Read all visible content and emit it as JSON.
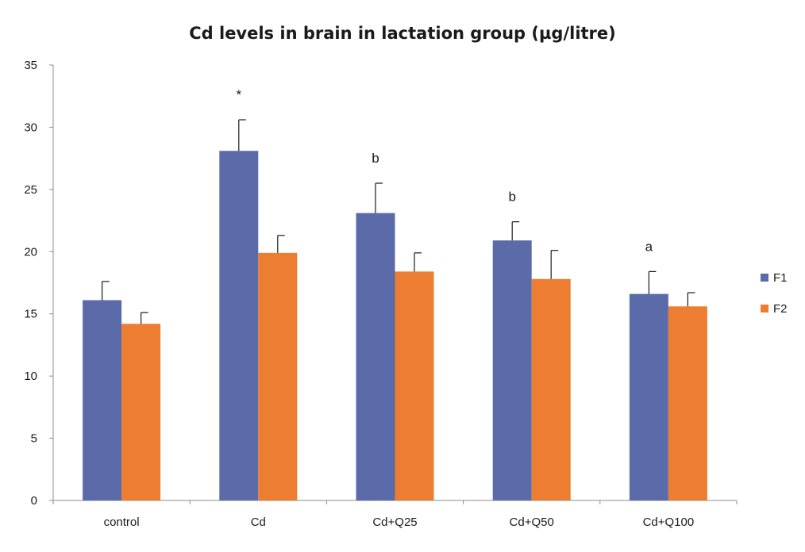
{
  "chart_data": {
    "type": "bar",
    "title": "Cd levels in brain in lactation group (µg/litre)",
    "xlabel": "",
    "ylabel": "",
    "ylim": [
      0,
      35
    ],
    "yticks": [
      0,
      5,
      10,
      15,
      20,
      25,
      30,
      35
    ],
    "categories": [
      "control",
      "Cd",
      "Cd+Q25",
      "Cd+Q50",
      "Cd+Q100"
    ],
    "series": [
      {
        "name": "F1",
        "color": "#5B6BAA",
        "values": [
          16.1,
          28.1,
          23.1,
          20.9,
          16.6
        ],
        "errors": [
          1.5,
          2.5,
          2.4,
          1.5,
          1.8
        ]
      },
      {
        "name": "F2",
        "color": "#ED7D31",
        "values": [
          14.2,
          19.9,
          18.4,
          17.8,
          15.6
        ],
        "errors": [
          0.9,
          1.4,
          1.5,
          2.3,
          1.1
        ]
      }
    ],
    "significance": [
      "",
      "*",
      "b",
      "b",
      "a"
    ],
    "legend_position": "right",
    "grid": false
  }
}
